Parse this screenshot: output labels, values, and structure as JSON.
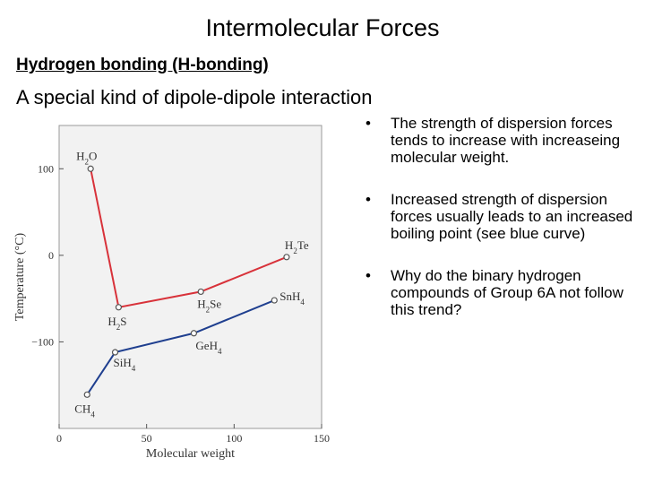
{
  "slide": {
    "title": "Intermolecular Forces",
    "heading": "Hydrogen bonding (H-bonding)",
    "subheading": "A special kind of dipole-dipole interaction",
    "bullets": [
      "The strength of dispersion forces tends to increase with increaseing molecular weight.",
      "Increased strength of dispersion forces usually leads to an increased boiling point (see blue curve)",
      "Why do the binary hydrogen compounds of Group 6A not follow this trend?"
    ],
    "bullet_symbol": "•"
  },
  "chart_data": {
    "type": "line",
    "xlabel": "Molecular weight",
    "ylabel": "Temperature (°C)",
    "xlim": [
      0,
      150
    ],
    "ylim": [
      -200,
      150
    ],
    "xticks": [
      0,
      50,
      100,
      150
    ],
    "yticks": [
      100,
      0,
      -100
    ],
    "ytick_labels": [
      "100",
      "0",
      "−100"
    ],
    "grid": false,
    "background": "#f2f2f2",
    "series": [
      {
        "color": "#d8323a",
        "points": [
          {
            "label": "H2O",
            "x": 18,
            "y": 100
          },
          {
            "label": "H2S",
            "x": 34,
            "y": -60
          },
          {
            "label": "H2Se",
            "x": 81,
            "y": -42
          },
          {
            "label": "H2Te",
            "x": 130,
            "y": -2
          }
        ]
      },
      {
        "color": "#1f3f8f",
        "points": [
          {
            "label": "CH4",
            "x": 16,
            "y": -161
          },
          {
            "label": "SiH4",
            "x": 32,
            "y": -112
          },
          {
            "label": "GeH4",
            "x": 77,
            "y": -90
          },
          {
            "label": "SnH4",
            "x": 123,
            "y": -52
          }
        ]
      }
    ]
  }
}
